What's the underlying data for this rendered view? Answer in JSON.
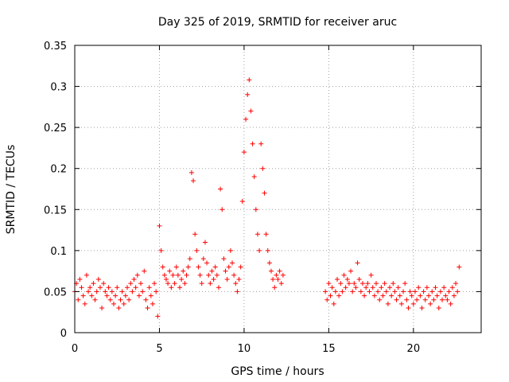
{
  "chart_data": {
    "type": "scatter",
    "title": "Day 325 of 2019, SRMTID for receiver aruc",
    "xlabel": "GPS time / hours",
    "ylabel": "SRMTID / TECUs",
    "xlim": [
      0,
      24
    ],
    "ylim": [
      0,
      0.35
    ],
    "xticks": [
      0,
      5,
      10,
      15,
      20
    ],
    "xtick_labels": [
      "0",
      "5",
      "10",
      "15",
      "20"
    ],
    "yticks": [
      0,
      0.05,
      0.1,
      0.15,
      0.2,
      0.25,
      0.3,
      0.35
    ],
    "ytick_labels": [
      "0",
      "0.05",
      "0.1",
      "0.15",
      "0.2",
      "0.25",
      "0.3",
      "0.35"
    ],
    "grid": true,
    "marker": "+",
    "color": "#ff0000",
    "series": [
      {
        "name": "SRMTID",
        "points": [
          [
            0.0,
            0.05
          ],
          [
            0.1,
            0.06
          ],
          [
            0.2,
            0.04
          ],
          [
            0.3,
            0.065
          ],
          [
            0.4,
            0.055
          ],
          [
            0.5,
            0.045
          ],
          [
            0.6,
            0.035
          ],
          [
            0.7,
            0.07
          ],
          [
            0.8,
            0.05
          ],
          [
            0.9,
            0.055
          ],
          [
            1.0,
            0.045
          ],
          [
            1.1,
            0.06
          ],
          [
            1.2,
            0.04
          ],
          [
            1.3,
            0.05
          ],
          [
            1.4,
            0.065
          ],
          [
            1.5,
            0.055
          ],
          [
            1.6,
            0.03
          ],
          [
            1.7,
            0.06
          ],
          [
            1.8,
            0.05
          ],
          [
            1.9,
            0.045
          ],
          [
            2.0,
            0.055
          ],
          [
            2.1,
            0.04
          ],
          [
            2.2,
            0.05
          ],
          [
            2.3,
            0.035
          ],
          [
            2.4,
            0.045
          ],
          [
            2.5,
            0.055
          ],
          [
            2.6,
            0.03
          ],
          [
            2.7,
            0.04
          ],
          [
            2.8,
            0.05
          ],
          [
            2.9,
            0.035
          ],
          [
            3.0,
            0.045
          ],
          [
            3.1,
            0.055
          ],
          [
            3.2,
            0.04
          ],
          [
            3.3,
            0.06
          ],
          [
            3.4,
            0.05
          ],
          [
            3.5,
            0.065
          ],
          [
            3.6,
            0.055
          ],
          [
            3.7,
            0.07
          ],
          [
            3.8,
            0.045
          ],
          [
            3.9,
            0.06
          ],
          [
            4.0,
            0.05
          ],
          [
            4.1,
            0.075
          ],
          [
            4.2,
            0.04
          ],
          [
            4.3,
            0.03
          ],
          [
            4.4,
            0.055
          ],
          [
            4.5,
            0.045
          ],
          [
            4.6,
            0.035
          ],
          [
            4.7,
            0.06
          ],
          [
            4.8,
            0.05
          ],
          [
            4.9,
            0.02
          ],
          [
            5.0,
            0.13
          ],
          [
            5.1,
            0.1
          ],
          [
            5.2,
            0.08
          ],
          [
            5.3,
            0.07
          ],
          [
            5.4,
            0.065
          ],
          [
            5.5,
            0.06
          ],
          [
            5.6,
            0.075
          ],
          [
            5.7,
            0.055
          ],
          [
            5.8,
            0.07
          ],
          [
            5.9,
            0.06
          ],
          [
            6.0,
            0.08
          ],
          [
            6.1,
            0.07
          ],
          [
            6.2,
            0.055
          ],
          [
            6.3,
            0.065
          ],
          [
            6.4,
            0.075
          ],
          [
            6.5,
            0.06
          ],
          [
            6.6,
            0.07
          ],
          [
            6.7,
            0.08
          ],
          [
            6.8,
            0.09
          ],
          [
            6.9,
            0.195
          ],
          [
            7.0,
            0.185
          ],
          [
            7.1,
            0.12
          ],
          [
            7.2,
            0.1
          ],
          [
            7.3,
            0.08
          ],
          [
            7.4,
            0.07
          ],
          [
            7.5,
            0.06
          ],
          [
            7.6,
            0.09
          ],
          [
            7.7,
            0.11
          ],
          [
            7.8,
            0.085
          ],
          [
            7.9,
            0.07
          ],
          [
            8.0,
            0.06
          ],
          [
            8.1,
            0.075
          ],
          [
            8.2,
            0.065
          ],
          [
            8.3,
            0.08
          ],
          [
            8.4,
            0.07
          ],
          [
            8.5,
            0.055
          ],
          [
            8.6,
            0.175
          ],
          [
            8.7,
            0.15
          ],
          [
            8.8,
            0.09
          ],
          [
            8.9,
            0.075
          ],
          [
            9.0,
            0.065
          ],
          [
            9.1,
            0.08
          ],
          [
            9.2,
            0.1
          ],
          [
            9.3,
            0.085
          ],
          [
            9.4,
            0.07
          ],
          [
            9.5,
            0.06
          ],
          [
            9.6,
            0.05
          ],
          [
            9.7,
            0.065
          ],
          [
            9.8,
            0.08
          ],
          [
            9.9,
            0.16
          ],
          [
            10.0,
            0.22
          ],
          [
            10.1,
            0.26
          ],
          [
            10.2,
            0.29
          ],
          [
            10.3,
            0.308
          ],
          [
            10.4,
            0.27
          ],
          [
            10.5,
            0.23
          ],
          [
            10.6,
            0.19
          ],
          [
            10.7,
            0.15
          ],
          [
            10.8,
            0.12
          ],
          [
            10.9,
            0.1
          ],
          [
            11.0,
            0.23
          ],
          [
            11.1,
            0.2
          ],
          [
            11.2,
            0.17
          ],
          [
            11.3,
            0.12
          ],
          [
            11.4,
            0.1
          ],
          [
            11.5,
            0.085
          ],
          [
            11.6,
            0.075
          ],
          [
            11.7,
            0.065
          ],
          [
            11.8,
            0.055
          ],
          [
            11.9,
            0.07
          ],
          [
            12.0,
            0.065
          ],
          [
            12.1,
            0.075
          ],
          [
            12.2,
            0.06
          ],
          [
            12.3,
            0.07
          ],
          [
            14.8,
            0.05
          ],
          [
            14.9,
            0.04
          ],
          [
            15.0,
            0.06
          ],
          [
            15.1,
            0.045
          ],
          [
            15.2,
            0.055
          ],
          [
            15.3,
            0.035
          ],
          [
            15.4,
            0.05
          ],
          [
            15.5,
            0.065
          ],
          [
            15.6,
            0.045
          ],
          [
            15.7,
            0.06
          ],
          [
            15.8,
            0.05
          ],
          [
            15.9,
            0.07
          ],
          [
            16.0,
            0.055
          ],
          [
            16.1,
            0.065
          ],
          [
            16.2,
            0.06
          ],
          [
            16.3,
            0.075
          ],
          [
            16.4,
            0.05
          ],
          [
            16.5,
            0.06
          ],
          [
            16.6,
            0.055
          ],
          [
            16.7,
            0.085
          ],
          [
            16.8,
            0.065
          ],
          [
            16.9,
            0.05
          ],
          [
            17.0,
            0.06
          ],
          [
            17.1,
            0.045
          ],
          [
            17.2,
            0.055
          ],
          [
            17.3,
            0.06
          ],
          [
            17.4,
            0.05
          ],
          [
            17.5,
            0.07
          ],
          [
            17.6,
            0.055
          ],
          [
            17.7,
            0.045
          ],
          [
            17.8,
            0.06
          ],
          [
            17.9,
            0.05
          ],
          [
            18.0,
            0.04
          ],
          [
            18.1,
            0.055
          ],
          [
            18.2,
            0.045
          ],
          [
            18.3,
            0.06
          ],
          [
            18.4,
            0.05
          ],
          [
            18.5,
            0.035
          ],
          [
            18.6,
            0.055
          ],
          [
            18.7,
            0.045
          ],
          [
            18.8,
            0.06
          ],
          [
            18.9,
            0.05
          ],
          [
            19.0,
            0.04
          ],
          [
            19.1,
            0.055
          ],
          [
            19.2,
            0.045
          ],
          [
            19.3,
            0.035
          ],
          [
            19.4,
            0.05
          ],
          [
            19.5,
            0.06
          ],
          [
            19.6,
            0.04
          ],
          [
            19.7,
            0.03
          ],
          [
            19.8,
            0.05
          ],
          [
            19.9,
            0.045
          ],
          [
            20.0,
            0.035
          ],
          [
            20.1,
            0.05
          ],
          [
            20.2,
            0.04
          ],
          [
            20.3,
            0.055
          ],
          [
            20.4,
            0.045
          ],
          [
            20.5,
            0.03
          ],
          [
            20.6,
            0.05
          ],
          [
            20.7,
            0.04
          ],
          [
            20.8,
            0.055
          ],
          [
            20.9,
            0.045
          ],
          [
            21.0,
            0.035
          ],
          [
            21.1,
            0.05
          ],
          [
            21.2,
            0.04
          ],
          [
            21.3,
            0.055
          ],
          [
            21.4,
            0.045
          ],
          [
            21.5,
            0.03
          ],
          [
            21.6,
            0.05
          ],
          [
            21.7,
            0.04
          ],
          [
            21.8,
            0.055
          ],
          [
            21.9,
            0.045
          ],
          [
            22.0,
            0.04
          ],
          [
            22.1,
            0.05
          ],
          [
            22.2,
            0.035
          ],
          [
            22.3,
            0.055
          ],
          [
            22.4,
            0.045
          ],
          [
            22.5,
            0.06
          ],
          [
            22.6,
            0.05
          ],
          [
            22.7,
            0.08
          ]
        ]
      }
    ]
  }
}
